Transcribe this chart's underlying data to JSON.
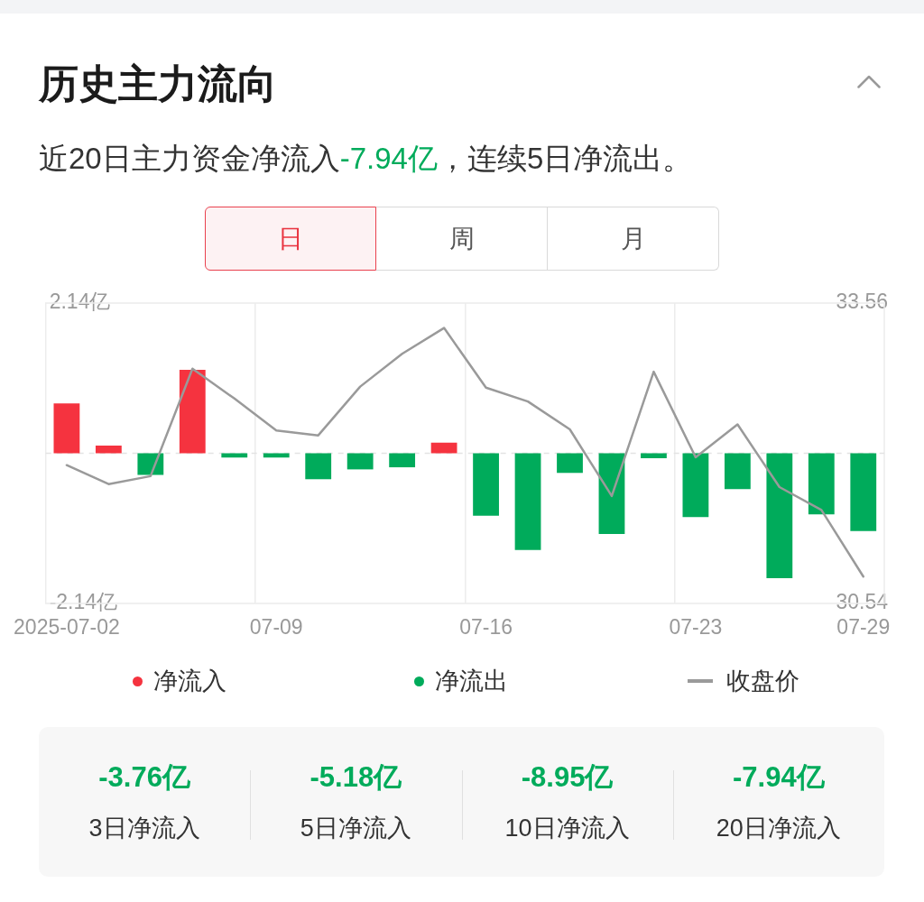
{
  "chart_data": [
    {
      "type": "bar",
      "title": "历史主力流向",
      "subtitle": "近20日主力资金净流入-7.94亿，连续5日净流出。",
      "annotations": [
        "日",
        "周",
        "月"
      ],
      "categories": [
        "2025-07-02",
        null,
        null,
        null,
        null,
        "07-09",
        null,
        null,
        null,
        null,
        "07-16",
        null,
        null,
        null,
        null,
        "07-23",
        null,
        null,
        null,
        "07-29"
      ],
      "series": [
        {
          "name": "净流入",
          "color": "#f5333f",
          "values": [
            0.71,
            0.11,
            null,
            1.19,
            null,
            null,
            null,
            null,
            null,
            0.15,
            null,
            null,
            null,
            null,
            null,
            null,
            null,
            null,
            null,
            null
          ]
        },
        {
          "name": "净流出",
          "color": "#00ab5b",
          "values": [
            null,
            null,
            -0.31,
            null,
            -0.06,
            -0.06,
            -0.37,
            -0.23,
            -0.2,
            null,
            -0.89,
            -1.38,
            -0.28,
            -1.15,
            -0.07,
            -0.91,
            -0.51,
            -1.78,
            -0.87,
            -1.11
          ]
        },
        {
          "name": "收盘价",
          "type": "line",
          "axis": "y2",
          "color": "#9a9a9a",
          "values": [
            31.93,
            31.74,
            31.82,
            32.9,
            32.6,
            32.28,
            32.23,
            32.72,
            33.05,
            33.31,
            32.71,
            32.57,
            32.29,
            31.62,
            32.87,
            32.01,
            32.34,
            31.71,
            31.48,
            30.81
          ]
        }
      ],
      "stacked": true,
      "ylim": [
        -2.14,
        2.14
      ],
      "yticks": [
        {
          "value": -2.14,
          "label": "-2.14亿"
        },
        {
          "value": 2.14,
          "label": "2.14亿"
        }
      ],
      "y2lim": [
        30.54,
        33.56
      ],
      "y2ticks": [
        30.54,
        33.56
      ],
      "grid": "x",
      "legend": "bottom",
      "marker": "none",
      "ref_lines": [
        {
          "axis": "y",
          "value": 0,
          "line_style": "dashed",
          "color": "#e3e3e3"
        }
      ]
    },
    {
      "type": "other",
      "annotations": [
        "-3.76亿",
        "3日净流入",
        "-5.18亿",
        "5日净流入",
        "-8.95亿",
        "10日净流入",
        "-7.94亿",
        "20日净流入"
      ]
    }
  ]
}
